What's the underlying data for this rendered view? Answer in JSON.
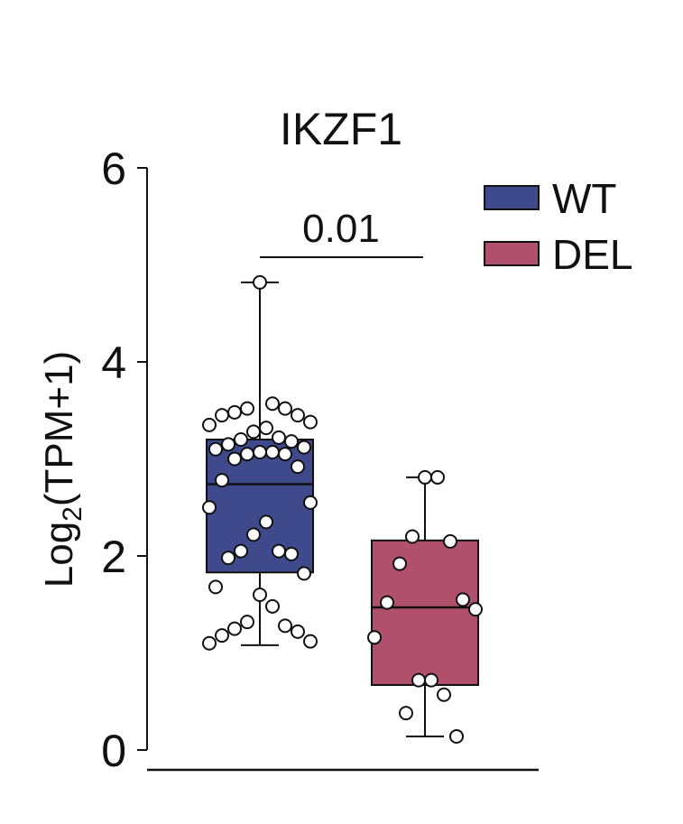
{
  "chart_data": {
    "type": "box",
    "title": "IKZF1",
    "ylabel_main": "Log",
    "ylabel_sub": "2",
    "ylabel_rest": "(TPM+1)",
    "ylim": [
      0,
      6
    ],
    "yticks": [
      0,
      2,
      4,
      6
    ],
    "significance": {
      "label": "0.01",
      "groups": [
        "WT",
        "DEL"
      ]
    },
    "legend": {
      "position": "top-right"
    },
    "groups": [
      {
        "name": "WT",
        "color": "#3f4a8c",
        "min": 1.08,
        "q1": 1.83,
        "median": 2.74,
        "q3": 3.2,
        "max": 4.82,
        "points": [
          4.82,
          3.57,
          3.52,
          3.52,
          3.48,
          3.45,
          3.45,
          3.38,
          3.35,
          3.32,
          3.28,
          3.22,
          3.2,
          3.18,
          3.15,
          3.12,
          3.1,
          3.07,
          3.07,
          3.05,
          3.05,
          3.0,
          2.92,
          2.78,
          2.55,
          2.5,
          2.35,
          2.22,
          2.05,
          2.05,
          2.02,
          1.98,
          1.82,
          1.68,
          1.6,
          1.48,
          1.32,
          1.28,
          1.25,
          1.22,
          1.18,
          1.12,
          1.1
        ]
      },
      {
        "name": "DEL",
        "color": "#b0506c",
        "min": 0.14,
        "q1": 0.67,
        "median": 1.47,
        "q3": 2.16,
        "max": 2.81,
        "points": [
          2.81,
          2.81,
          2.2,
          2.15,
          1.92,
          1.55,
          1.52,
          1.45,
          1.16,
          0.72,
          0.72,
          0.57,
          0.38,
          0.14
        ]
      }
    ]
  }
}
